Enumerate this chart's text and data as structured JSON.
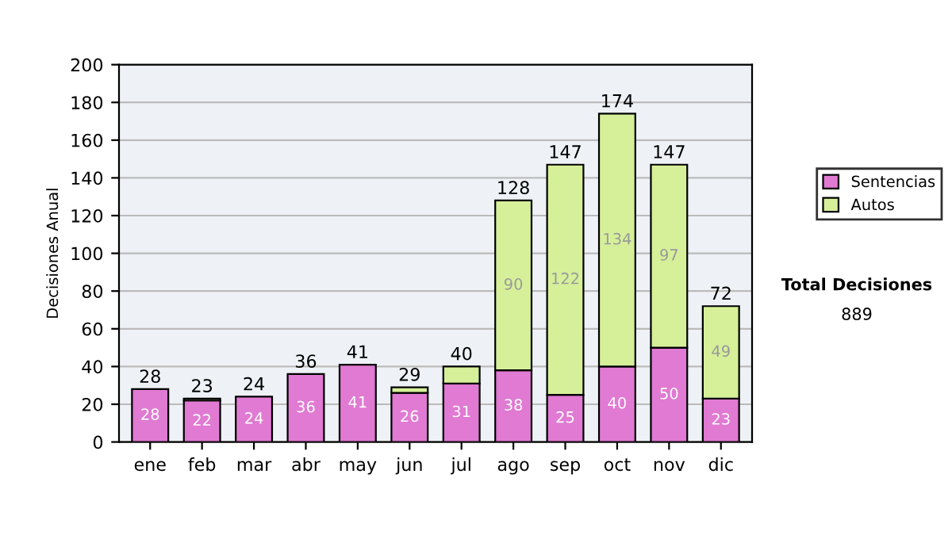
{
  "chart_data": {
    "type": "bar",
    "stacked": true,
    "ylabel": "Decisiones Anual",
    "categories": [
      "ene",
      "feb",
      "mar",
      "abr",
      "may",
      "jun",
      "jul",
      "ago",
      "sep",
      "oct",
      "nov",
      "dic"
    ],
    "series": [
      {
        "name": "Sentencias",
        "color": "#e07ad2",
        "values": [
          28,
          22,
          24,
          36,
          41,
          26,
          31,
          38,
          25,
          40,
          50,
          23
        ],
        "value_labels": [
          "28",
          "22",
          "24",
          "36",
          "41",
          "26",
          "31",
          "38",
          "25",
          "40",
          "50",
          "23"
        ]
      },
      {
        "name": "Autos",
        "color": "#d6f09a",
        "values": [
          null,
          1,
          null,
          null,
          null,
          3,
          9,
          90,
          122,
          134,
          97,
          49
        ],
        "value_labels": [
          null,
          null,
          null,
          null,
          null,
          null,
          null,
          "90",
          "122",
          "134",
          "97",
          "49"
        ]
      }
    ],
    "totals": [
      "28",
      "23",
      "24",
      "36",
      "41",
      "29",
      "40",
      "128",
      "147",
      "174",
      "147",
      "72"
    ],
    "ylim": [
      0,
      200
    ],
    "yticks": [
      0,
      20,
      40,
      60,
      80,
      100,
      120,
      140,
      160,
      180,
      200
    ],
    "grid": "y",
    "legend": "right",
    "annotations": [
      "Total Decisiones",
      "889"
    ]
  }
}
